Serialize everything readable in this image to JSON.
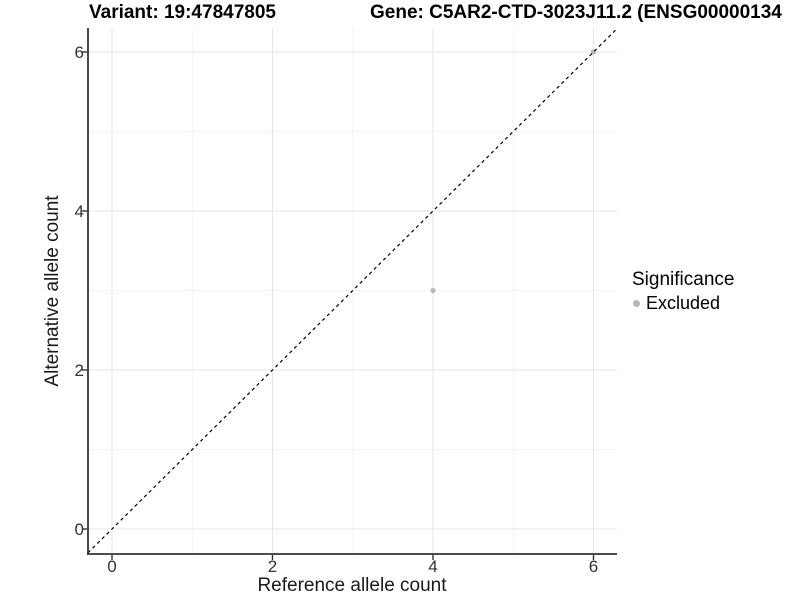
{
  "titles": {
    "variant": "Variant: 19:47847805",
    "gene": "Gene: C5AR2-CTD-3023J11.2 (ENSG00000134"
  },
  "legend": {
    "title": "Significance",
    "items": [
      {
        "label": "Excluded",
        "color": "#b8b8b8",
        "shape": "circle"
      }
    ]
  },
  "chart_data": {
    "type": "scatter",
    "title": "Variant: 19:47847805   Gene: C5AR2-CTD-3023J11.2 (ENSG00000134",
    "xlabel": "Reference allele count",
    "ylabel": "Alternative allele count",
    "xlim": [
      -0.3,
      6.3
    ],
    "ylim": [
      -0.3,
      6.3
    ],
    "xticks": [
      0,
      2,
      4,
      6
    ],
    "yticks": [
      0,
      2,
      4,
      6
    ],
    "x_minor_ticks": [
      1,
      3,
      5
    ],
    "y_minor_ticks": [
      1,
      3,
      5
    ],
    "grid": "major and minor gridlines",
    "legend_position": "right",
    "series": [
      {
        "name": "Excluded",
        "color": "#b8b8b8",
        "marker": "circle",
        "points": [
          {
            "x": 4,
            "y": 3
          },
          {
            "x": 6,
            "y": 6
          }
        ]
      }
    ],
    "reference_line": {
      "type": "identity",
      "slope": 1,
      "intercept": 0,
      "style": "dashed",
      "color": "#000000"
    }
  },
  "style": {
    "background": "#ffffff",
    "axis_color": "#333333",
    "tick_label_color": "#333333",
    "major_grid_color": "#e6e6e6",
    "minor_grid_color": "#f1f1f1",
    "point_color": "#b8b8b8",
    "title_color": "#000000"
  }
}
